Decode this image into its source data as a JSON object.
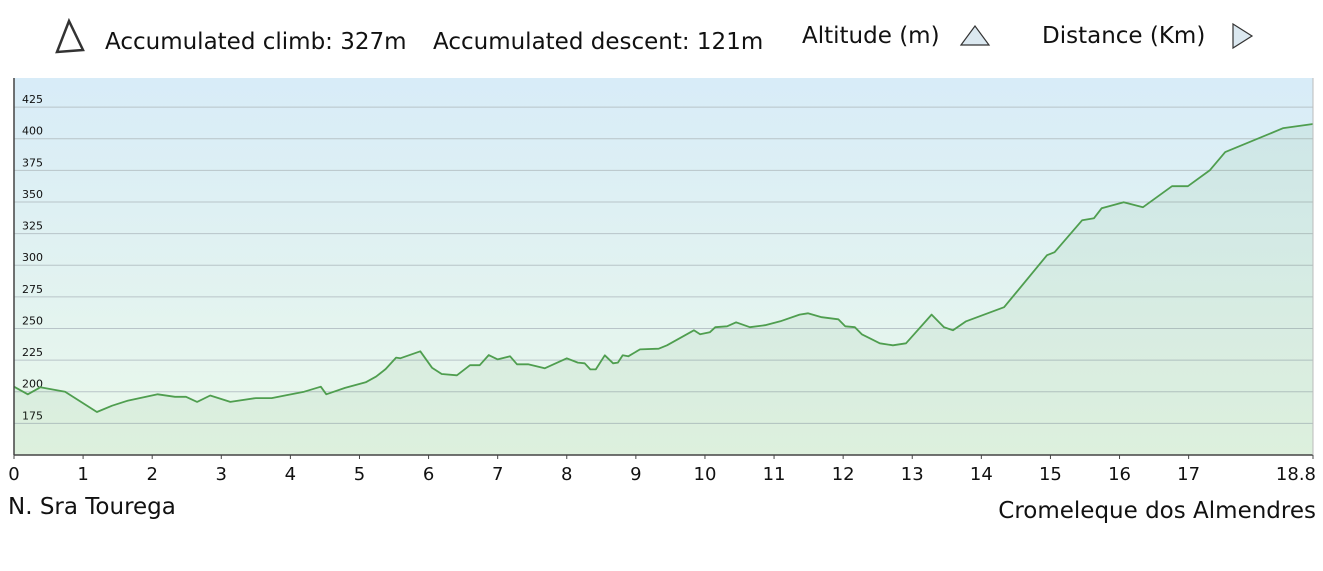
{
  "header": {
    "climb": "Accumulated climb: 327m",
    "descent": "Accumulated descent: 121m"
  },
  "chart_data": {
    "type": "area",
    "ylabel": "Altitude (m)",
    "xlabel": "Distance (Km)",
    "start_label": "N. Sra Tourega",
    "end_label": "Cromeleque dos Almendres",
    "color": "#4f9e4f",
    "grid": true,
    "xlim": [
      0,
      18.8
    ],
    "xticks": [
      0,
      1,
      2,
      3,
      4,
      5,
      6,
      7,
      8,
      9,
      10,
      11,
      12,
      13,
      14,
      15,
      16,
      17,
      18.8
    ],
    "ylim": [
      150,
      448
    ],
    "yticks": [
      175,
      200,
      225,
      250,
      275,
      300,
      325,
      350,
      375,
      400,
      425
    ],
    "x": [
      0,
      0.2,
      0.38,
      0.74,
      1.2,
      1.42,
      1.65,
      2.08,
      2.33,
      2.49,
      2.65,
      2.84,
      3.13,
      3.5,
      3.73,
      3.92,
      4.2,
      4.44,
      4.52,
      4.79,
      5.09,
      5.24,
      5.38,
      5.53,
      5.59,
      5.88,
      6.05,
      6.19,
      6.41,
      6.6,
      6.74,
      6.87,
      7.0,
      7.18,
      7.28,
      7.44,
      7.68,
      8.0,
      8.16,
      8.26,
      8.34,
      8.42,
      8.55,
      8.67,
      8.74,
      8.81,
      8.89,
      9.06,
      9.33,
      9.45,
      9.84,
      9.93,
      10.07,
      10.15,
      10.32,
      10.45,
      10.65,
      10.87,
      11.09,
      11.37,
      11.49,
      11.69,
      11.93,
      12.03,
      12.17,
      12.27,
      12.39,
      12.53,
      12.72,
      12.91,
      13.28,
      13.46,
      13.59,
      13.78,
      14.33,
      14.95,
      15.06,
      15.46,
      15.63,
      15.74,
      16.06,
      16.34,
      16.76,
      16.99,
      17.31,
      17.53,
      18.37,
      18.8
    ],
    "values": [
      204,
      198,
      203.5,
      200,
      184,
      189,
      193,
      198,
      196,
      196,
      192,
      197,
      192,
      195,
      195,
      197,
      200,
      204,
      198,
      203,
      207.5,
      212,
      218,
      227,
      226.4,
      232,
      219,
      214,
      213,
      221,
      221,
      229,
      225.6,
      228,
      221.7,
      221.7,
      218.5,
      226.4,
      223,
      222.5,
      217.7,
      217.7,
      228.8,
      222.5,
      223,
      228.8,
      228,
      233.5,
      234,
      236.7,
      248.6,
      245.4,
      247,
      251,
      251.7,
      254.9,
      251,
      252.6,
      255.7,
      261,
      262,
      258.9,
      257.3,
      251.7,
      251,
      245.4,
      242.2,
      238.3,
      236.7,
      238.3,
      261,
      251,
      248.6,
      255.7,
      266.8,
      307.9,
      310.3,
      335.6,
      337.2,
      345,
      349.8,
      345.9,
      362.5,
      362.5,
      375.2,
      389.4,
      408.4,
      411.6
    ]
  }
}
